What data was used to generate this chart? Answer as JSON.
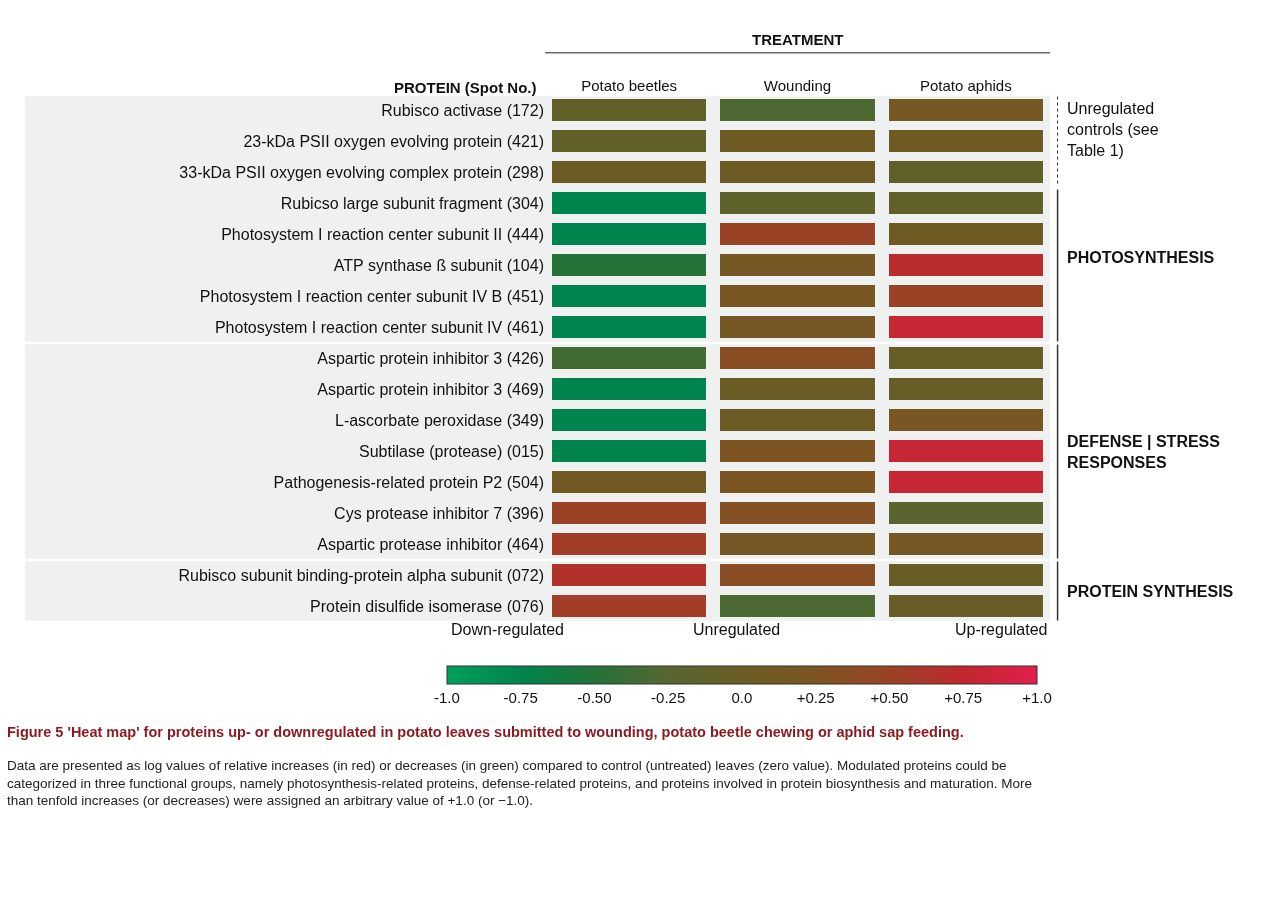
{
  "chart_data": {
    "type": "heatmap",
    "xlabel": "TREATMENT",
    "ylabel": "PROTEIN (Spot No.)",
    "categories": [
      "Potato beetles",
      "Wounding",
      "Potato aphids"
    ],
    "y_categories": [
      "Rubisco activase (172)",
      "23-kDa PSII oxygen evolving protein (421)",
      "33-kDa PSII oxygen evolving complex protein (298)",
      "Rubicso large subunit fragment (304)",
      "Photosystem I reaction center subunit II (444)",
      "ATP synthase ß subunit (104)",
      "Photosystem I reaction center subunit IV B (451)",
      "Photosystem I reaction center subunit IV (461)",
      "Aspartic protein inhibitor 3 (426)",
      "Aspartic protein inhibitor 3 (469)",
      "L-ascorbate peroxidase (349)",
      "Subtilase (protease) (015)",
      "Pathogenesis-related protein P2 (504)",
      "Cys protease inhibitor 7 (396)",
      "Aspartic protease inhibitor (464)",
      "Rubisco subunit binding-protein alpha subunit (072)",
      "Protein disulfide isomerase (076)"
    ],
    "cells": [
      [
        -0.1,
        -0.3,
        0.15
      ],
      [
        -0.1,
        0.05,
        0.05
      ],
      [
        0.05,
        0.05,
        -0.1
      ],
      [
        -0.75,
        -0.15,
        -0.1
      ],
      [
        -0.75,
        0.5,
        0.05
      ],
      [
        -0.5,
        0.15,
        0.7
      ],
      [
        -0.75,
        0.2,
        0.5
      ],
      [
        -0.75,
        0.15,
        0.8
      ],
      [
        -0.35,
        0.35,
        -0.05
      ],
      [
        -0.75,
        0.0,
        -0.05
      ],
      [
        -0.75,
        0.05,
        0.2
      ],
      [
        -0.75,
        0.25,
        0.8
      ],
      [
        0.1,
        0.25,
        0.8
      ],
      [
        0.5,
        0.3,
        -0.2
      ],
      [
        0.55,
        0.15,
        0.15
      ],
      [
        0.65,
        0.35,
        -0.05
      ],
      [
        0.55,
        -0.3,
        -0.05
      ]
    ],
    "clim": [
      -1.0,
      1.0
    ],
    "cticks": [
      {
        "value": -1.0,
        "label": "-1.0"
      },
      {
        "value": -0.75,
        "label": "-0.75"
      },
      {
        "value": -0.5,
        "label": "-0.50"
      },
      {
        "value": -0.25,
        "label": "-0.25"
      },
      {
        "value": 0.0,
        "label": "0.0"
      },
      {
        "value": 0.25,
        "label": "+0.25"
      },
      {
        "value": 0.5,
        "label": "+0.50"
      },
      {
        "value": 0.75,
        "label": "+0.75"
      },
      {
        "value": 1.0,
        "label": "+1.0"
      }
    ],
    "annotations": [
      "Unregulated controls (see Table 1)",
      "PHOTOSYNTHESIS",
      "DEFENSE | STRESS RESPONSES",
      "PROTEIN SYNTHESIS",
      "Down-regulated",
      "Unregulated",
      "Up-regulated",
      "Figure 5 'Heat map' for proteins up- or downregulated in potato leaves submitted to wounding, potato beetle chewing or aphid sap feeding.",
      "Data are presented as log values of relative increases (in red) or decreases (in green) compared to control (untreated) leaves (zero value). Modulated proteins could be categorized in three functional groups, namely photosynthesis-related proteins, defense-related proteins, and proteins involved in protein biosynthesis and maturation. More than tenfold increases (or decreases) were assigned an arbitrary value of +1.0 (or −1.0)."
    ]
  }
}
